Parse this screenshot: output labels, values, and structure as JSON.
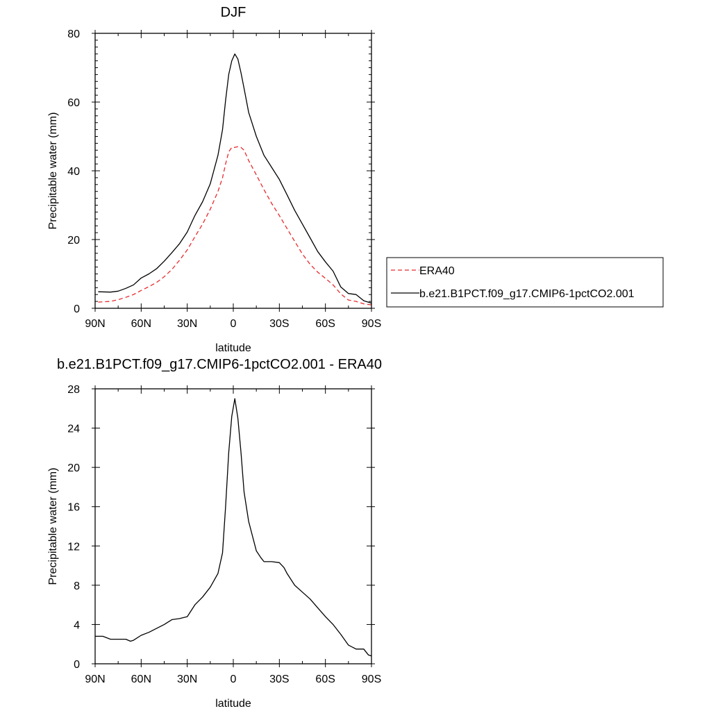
{
  "chart_data": [
    {
      "type": "line",
      "title": "DJF",
      "xlabel": "latitude",
      "ylabel": "Precipitable water (mm)",
      "xlim": [
        -90,
        90
      ],
      "ylim": [
        0,
        80
      ],
      "xticks": [
        -90,
        -60,
        -30,
        0,
        30,
        60,
        90
      ],
      "xtick_labels": [
        "90N",
        "60N",
        "30N",
        "0",
        "30S",
        "60S",
        "90S"
      ],
      "yticks": [
        0,
        20,
        40,
        60,
        80
      ],
      "ytick_labels": [
        "0",
        "20",
        "40",
        "60",
        "80"
      ],
      "legend_position": "right",
      "series": [
        {
          "name": "ERA40",
          "color": "#e8292c",
          "dash": "dashed",
          "x": [
            -88,
            -80,
            -75,
            -70,
            -65,
            -60,
            -55,
            -50,
            -45,
            -40,
            -35,
            -30,
            -25,
            -20,
            -15,
            -10,
            -7,
            -5,
            -3,
            -1,
            1,
            3,
            5,
            7,
            10,
            15,
            20,
            25,
            30,
            35,
            40,
            45,
            50,
            55,
            60,
            65,
            70,
            75,
            80,
            85,
            90
          ],
          "y": [
            1.8,
            2.0,
            2.5,
            3.2,
            4.0,
            5.2,
            6.3,
            7.5,
            9.2,
            11.3,
            14.0,
            17.0,
            20.8,
            24.5,
            28.8,
            34.0,
            38.0,
            42.0,
            45.5,
            46.8,
            46.8,
            47.0,
            46.8,
            46.0,
            43.0,
            38.8,
            34.5,
            30.5,
            27.0,
            23.2,
            19.5,
            15.8,
            12.8,
            10.5,
            8.7,
            6.8,
            4.2,
            2.4,
            2.0,
            1.3,
            1.0
          ]
        },
        {
          "name": "b.e21.B1PCT.f09_g17.CMIP6-1pctCO2.001",
          "color": "#000000",
          "dash": "solid",
          "x": [
            -88,
            -80,
            -75,
            -70,
            -65,
            -60,
            -55,
            -50,
            -45,
            -40,
            -35,
            -30,
            -25,
            -20,
            -15,
            -10,
            -7,
            -5,
            -3,
            -1,
            1,
            3,
            5,
            7,
            10,
            15,
            20,
            25,
            30,
            35,
            40,
            45,
            50,
            55,
            60,
            65,
            70,
            75,
            80,
            85,
            90
          ],
          "y": [
            4.8,
            4.7,
            5.0,
            5.8,
            6.8,
            8.8,
            10.0,
            11.5,
            13.7,
            16.2,
            18.8,
            22.2,
            27.0,
            31.0,
            36.2,
            44.5,
            52.0,
            60.5,
            68.0,
            72.0,
            74.0,
            72.5,
            68.5,
            64.0,
            57.0,
            50.0,
            44.5,
            41.0,
            37.5,
            33.0,
            28.5,
            24.5,
            20.5,
            16.5,
            13.5,
            10.8,
            6.2,
            4.3,
            4.0,
            2.2,
            1.5
          ]
        }
      ]
    },
    {
      "type": "line",
      "title": "b.e21.B1PCT.f09_g17.CMIP6-1pctCO2.001 - ERA40",
      "xlabel": "latitude",
      "ylabel": "Precipitable water (mm)",
      "xlim": [
        -90,
        90
      ],
      "ylim": [
        0,
        28
      ],
      "xticks": [
        -90,
        -60,
        -30,
        0,
        30,
        60,
        90
      ],
      "xtick_labels": [
        "90N",
        "60N",
        "30N",
        "0",
        "30S",
        "60S",
        "90S"
      ],
      "yticks": [
        0,
        4,
        8,
        12,
        16,
        20,
        24,
        28
      ],
      "ytick_labels": [
        "0",
        "4",
        "8",
        "12",
        "16",
        "20",
        "24",
        "28"
      ],
      "series": [
        {
          "color": "#000000",
          "dash": "solid",
          "x": [
            -90,
            -85,
            -80,
            -75,
            -70,
            -67,
            -65,
            -60,
            -55,
            -50,
            -45,
            -40,
            -35,
            -30,
            -25,
            -20,
            -15,
            -10,
            -7,
            -5,
            -3,
            -1,
            1,
            3,
            5,
            7,
            10,
            15,
            18,
            20,
            25,
            30,
            33,
            35,
            40,
            45,
            50,
            55,
            60,
            65,
            70,
            75,
            80,
            85,
            88,
            90
          ],
          "y": [
            2.8,
            2.8,
            2.5,
            2.5,
            2.5,
            2.3,
            2.4,
            2.9,
            3.2,
            3.6,
            4.0,
            4.5,
            4.6,
            4.8,
            6.0,
            6.8,
            7.8,
            9.2,
            11.3,
            16.0,
            21.5,
            25.2,
            27.0,
            25.0,
            21.5,
            17.5,
            14.5,
            11.5,
            10.8,
            10.4,
            10.4,
            10.3,
            9.8,
            9.2,
            8.0,
            7.3,
            6.6,
            5.7,
            4.8,
            4.0,
            3.0,
            1.9,
            1.5,
            1.5,
            0.9,
            0.8
          ]
        }
      ]
    }
  ]
}
